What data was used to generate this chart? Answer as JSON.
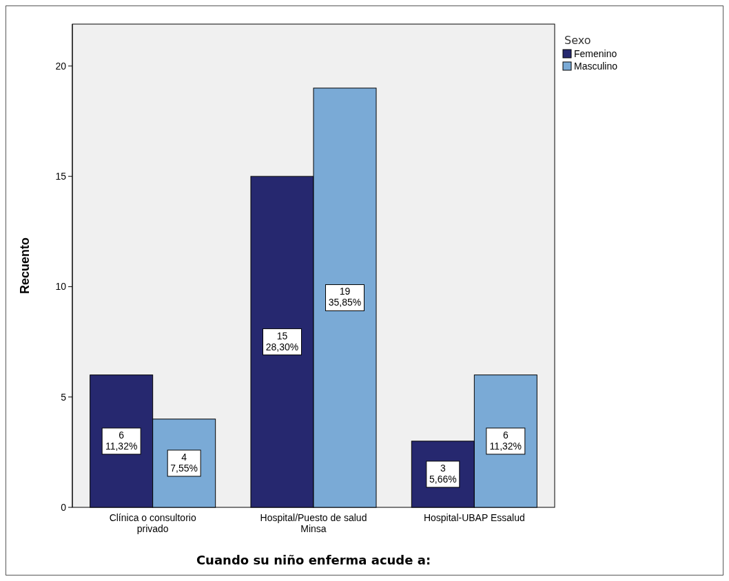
{
  "chart_data": {
    "type": "bar",
    "xlabel": "Cuando su niño enferma acude a:",
    "ylabel": "Recuento",
    "legend_title": "Sexo",
    "categories": [
      "Clínica o consultorio privado",
      "Hospital/Puesto de salud Minsa",
      "Hospital-UBAP Essalud"
    ],
    "series": [
      {
        "name": "Femenino",
        "color": "#26286f",
        "values": [
          6,
          15,
          3
        ],
        "value_labels": [
          "6\n11,32%",
          "15\n28,30%",
          "3\n5,66%"
        ]
      },
      {
        "name": "Masculino",
        "color": "#7aaad6",
        "values": [
          4,
          19,
          6
        ],
        "value_labels": [
          "4\n7,55%",
          "19\n35,85%",
          "6\n11,32%"
        ]
      }
    ],
    "ylim": [
      0,
      21.9
    ],
    "yticks": [
      0,
      5,
      10,
      15,
      20
    ],
    "grid": false,
    "legend": "top right"
  }
}
